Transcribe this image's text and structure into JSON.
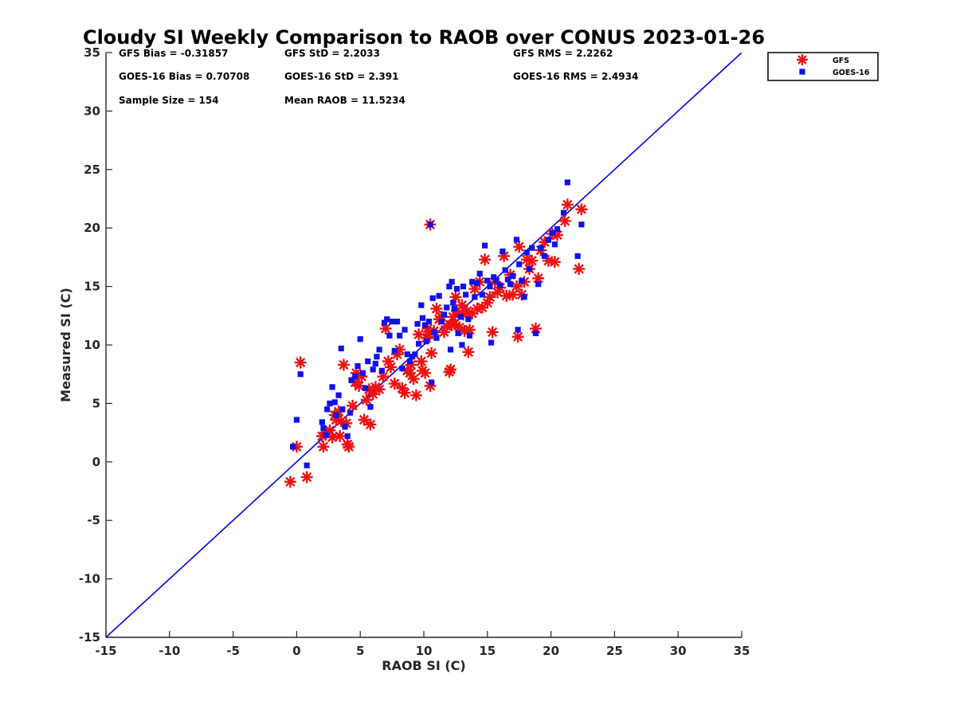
{
  "chart_data": {
    "type": "scatter",
    "title": "Cloudy SI Weekly Comparison to RAOB over CONUS 2023-01-26",
    "xlabel": "RAOB SI (C)",
    "ylabel": "Measured SI (C)",
    "xlim": [
      -15,
      35
    ],
    "ylim": [
      -15,
      35
    ],
    "xticks": [
      -15,
      -10,
      -5,
      0,
      5,
      10,
      15,
      20,
      25,
      30,
      35
    ],
    "yticks": [
      -15,
      -10,
      -5,
      0,
      5,
      10,
      15,
      20,
      25,
      30,
      35
    ],
    "grid": false,
    "legend_position": "top-right outside",
    "reference_line": {
      "type": "1:1",
      "color": "#0000dd"
    },
    "stats": [
      [
        "GFS Bias = -0.31857",
        "GFS StD = 2.2033",
        "GFS RMS = 2.2262"
      ],
      [
        "GOES-16 Bias = 0.70708",
        "GOES-16 StD = 2.391",
        "GOES-16 RMS = 2.4934"
      ],
      [
        "Sample Size = 154",
        "Mean RAOB = 11.5234",
        ""
      ]
    ],
    "series": [
      {
        "name": "GFS",
        "marker": "asterisk",
        "color": "#ee1111",
        "points": [
          [
            -0.5,
            -1.7
          ],
          [
            0.0,
            1.3
          ],
          [
            0.3,
            8.5
          ],
          [
            0.8,
            -1.3
          ],
          [
            2.0,
            2.2
          ],
          [
            2.1,
            1.3
          ],
          [
            2.3,
            2.5
          ],
          [
            2.6,
            2.7
          ],
          [
            2.8,
            2.1
          ],
          [
            3.0,
            4.0
          ],
          [
            3.1,
            3.6
          ],
          [
            3.3,
            4.3
          ],
          [
            3.4,
            2.2
          ],
          [
            3.5,
            3.5
          ],
          [
            3.7,
            8.3
          ],
          [
            3.9,
            3.3
          ],
          [
            4.0,
            1.5
          ],
          [
            4.1,
            1.3
          ],
          [
            4.4,
            4.8
          ],
          [
            4.6,
            6.8
          ],
          [
            4.7,
            7.6
          ],
          [
            4.9,
            6.5
          ],
          [
            5.1,
            7.3
          ],
          [
            5.3,
            3.6
          ],
          [
            5.5,
            5.3
          ],
          [
            5.7,
            6.2
          ],
          [
            5.8,
            3.2
          ],
          [
            6.0,
            5.8
          ],
          [
            6.2,
            6.4
          ],
          [
            6.5,
            6.2
          ],
          [
            6.8,
            7.3
          ],
          [
            7.0,
            11.4
          ],
          [
            7.2,
            8.6
          ],
          [
            7.4,
            8.1
          ],
          [
            7.7,
            6.7
          ],
          [
            7.9,
            9.2
          ],
          [
            8.1,
            9.6
          ],
          [
            8.3,
            6.3
          ],
          [
            8.5,
            5.9
          ],
          [
            8.7,
            7.8
          ],
          [
            8.9,
            7.6
          ],
          [
            9.0,
            8.3
          ],
          [
            9.2,
            7.1
          ],
          [
            9.4,
            5.7
          ],
          [
            9.6,
            10.9
          ],
          [
            9.8,
            8.6
          ],
          [
            9.9,
            7.8
          ],
          [
            10.1,
            7.6
          ],
          [
            10.2,
            10.6
          ],
          [
            10.3,
            11.4
          ],
          [
            10.4,
            10.9
          ],
          [
            10.5,
            20.3
          ],
          [
            10.5,
            6.5
          ],
          [
            10.6,
            9.3
          ],
          [
            10.8,
            11.2
          ],
          [
            11.0,
            13.1
          ],
          [
            11.2,
            12.2
          ],
          [
            11.4,
            12.4
          ],
          [
            11.6,
            11.1
          ],
          [
            11.8,
            11.6
          ],
          [
            12.0,
            7.7
          ],
          [
            12.1,
            7.9
          ],
          [
            12.2,
            11.7
          ],
          [
            12.3,
            12.4
          ],
          [
            12.4,
            11.8
          ],
          [
            12.5,
            14.1
          ],
          [
            12.6,
            12.9
          ],
          [
            12.8,
            11.5
          ],
          [
            13.0,
            13.4
          ],
          [
            13.1,
            12.6
          ],
          [
            13.2,
            11.2
          ],
          [
            13.4,
            12.9
          ],
          [
            13.5,
            9.4
          ],
          [
            13.6,
            11.3
          ],
          [
            13.8,
            12.7
          ],
          [
            14.0,
            14.8
          ],
          [
            14.2,
            13.1
          ],
          [
            14.4,
            15.4
          ],
          [
            14.6,
            13.2
          ],
          [
            14.8,
            17.3
          ],
          [
            15.0,
            13.6
          ],
          [
            15.2,
            14.1
          ],
          [
            15.4,
            11.1
          ],
          [
            15.6,
            15.4
          ],
          [
            15.8,
            14.5
          ],
          [
            16.0,
            14.9
          ],
          [
            16.3,
            17.6
          ],
          [
            16.5,
            14.2
          ],
          [
            16.8,
            16.0
          ],
          [
            17.0,
            14.3
          ],
          [
            17.3,
            15.0
          ],
          [
            17.4,
            10.7
          ],
          [
            17.5,
            18.4
          ],
          [
            17.7,
            14.3
          ],
          [
            17.9,
            15.4
          ],
          [
            18.1,
            17.3
          ],
          [
            18.3,
            16.5
          ],
          [
            18.5,
            17.2
          ],
          [
            18.8,
            11.4
          ],
          [
            19.0,
            15.7
          ],
          [
            19.2,
            18.1
          ],
          [
            19.5,
            18.8
          ],
          [
            19.8,
            17.2
          ],
          [
            20.1,
            19.5
          ],
          [
            20.3,
            17.1
          ],
          [
            20.5,
            19.4
          ],
          [
            21.1,
            20.6
          ],
          [
            21.3,
            22.0
          ],
          [
            22.2,
            16.5
          ],
          [
            22.4,
            21.6
          ]
        ]
      },
      {
        "name": "GOES-16",
        "marker": "square",
        "color": "#1010ee",
        "points": [
          [
            -0.3,
            1.3
          ],
          [
            0.0,
            3.6
          ],
          [
            0.3,
            7.5
          ],
          [
            0.8,
            -0.3
          ],
          [
            2.0,
            3.4
          ],
          [
            2.1,
            2.9
          ],
          [
            2.3,
            2.3
          ],
          [
            2.4,
            4.5
          ],
          [
            2.6,
            5.0
          ],
          [
            2.8,
            6.4
          ],
          [
            3.0,
            5.1
          ],
          [
            3.1,
            4.0
          ],
          [
            3.3,
            5.7
          ],
          [
            3.5,
            9.7
          ],
          [
            3.6,
            4.5
          ],
          [
            3.8,
            3.0
          ],
          [
            4.0,
            2.2
          ],
          [
            4.2,
            4.2
          ],
          [
            4.3,
            7.0
          ],
          [
            4.6,
            7.3
          ],
          [
            4.8,
            8.2
          ],
          [
            5.0,
            10.5
          ],
          [
            5.2,
            7.6
          ],
          [
            5.4,
            6.3
          ],
          [
            5.6,
            8.6
          ],
          [
            5.8,
            4.7
          ],
          [
            6.0,
            7.9
          ],
          [
            6.2,
            8.4
          ],
          [
            6.3,
            9.0
          ],
          [
            6.5,
            9.6
          ],
          [
            6.7,
            7.8
          ],
          [
            6.9,
            11.9
          ],
          [
            7.1,
            12.2
          ],
          [
            7.3,
            10.8
          ],
          [
            7.5,
            12.0
          ],
          [
            7.7,
            9.5
          ],
          [
            7.9,
            12.0
          ],
          [
            8.1,
            10.8
          ],
          [
            8.3,
            8.0
          ],
          [
            8.5,
            11.3
          ],
          [
            8.7,
            9.2
          ],
          [
            8.9,
            8.6
          ],
          [
            9.1,
            9.0
          ],
          [
            9.3,
            9.2
          ],
          [
            9.5,
            11.8
          ],
          [
            9.6,
            10.1
          ],
          [
            9.8,
            13.4
          ],
          [
            9.9,
            12.3
          ],
          [
            10.1,
            11.7
          ],
          [
            10.2,
            10.3
          ],
          [
            10.4,
            12.0
          ],
          [
            10.5,
            20.3
          ],
          [
            10.6,
            6.8
          ],
          [
            10.7,
            14.0
          ],
          [
            10.8,
            11.1
          ],
          [
            11.0,
            10.6
          ],
          [
            11.2,
            14.2
          ],
          [
            11.4,
            12.0
          ],
          [
            11.6,
            12.6
          ],
          [
            11.8,
            13.2
          ],
          [
            12.0,
            15.0
          ],
          [
            12.1,
            9.6
          ],
          [
            12.2,
            15.4
          ],
          [
            12.3,
            13.6
          ],
          [
            12.4,
            13.1
          ],
          [
            12.6,
            14.8
          ],
          [
            12.7,
            11.0
          ],
          [
            12.9,
            12.4
          ],
          [
            13.0,
            10.0
          ],
          [
            13.1,
            15.0
          ],
          [
            13.3,
            14.3
          ],
          [
            13.5,
            12.2
          ],
          [
            13.6,
            10.8
          ],
          [
            13.8,
            15.4
          ],
          [
            14.0,
            14.1
          ],
          [
            14.2,
            15.3
          ],
          [
            14.4,
            16.1
          ],
          [
            14.6,
            14.3
          ],
          [
            14.8,
            18.5
          ],
          [
            15.0,
            15.5
          ],
          [
            15.2,
            15.0
          ],
          [
            15.3,
            10.2
          ],
          [
            15.5,
            15.8
          ],
          [
            15.7,
            15.5
          ],
          [
            16.0,
            15.1
          ],
          [
            16.2,
            18.0
          ],
          [
            16.4,
            16.4
          ],
          [
            16.6,
            15.6
          ],
          [
            16.8,
            15.2
          ],
          [
            17.0,
            15.9
          ],
          [
            17.3,
            19.0
          ],
          [
            17.4,
            11.3
          ],
          [
            17.5,
            16.9
          ],
          [
            17.7,
            15.5
          ],
          [
            17.9,
            14.1
          ],
          [
            18.1,
            17.9
          ],
          [
            18.3,
            16.5
          ],
          [
            18.5,
            18.3
          ],
          [
            18.8,
            11.0
          ],
          [
            19.0,
            15.2
          ],
          [
            19.2,
            18.3
          ],
          [
            19.5,
            17.6
          ],
          [
            19.8,
            19.0
          ],
          [
            20.1,
            19.6
          ],
          [
            20.3,
            18.6
          ],
          [
            20.5,
            19.9
          ],
          [
            21.0,
            21.3
          ],
          [
            21.3,
            23.9
          ],
          [
            22.1,
            17.6
          ],
          [
            22.4,
            20.3
          ]
        ]
      }
    ]
  }
}
